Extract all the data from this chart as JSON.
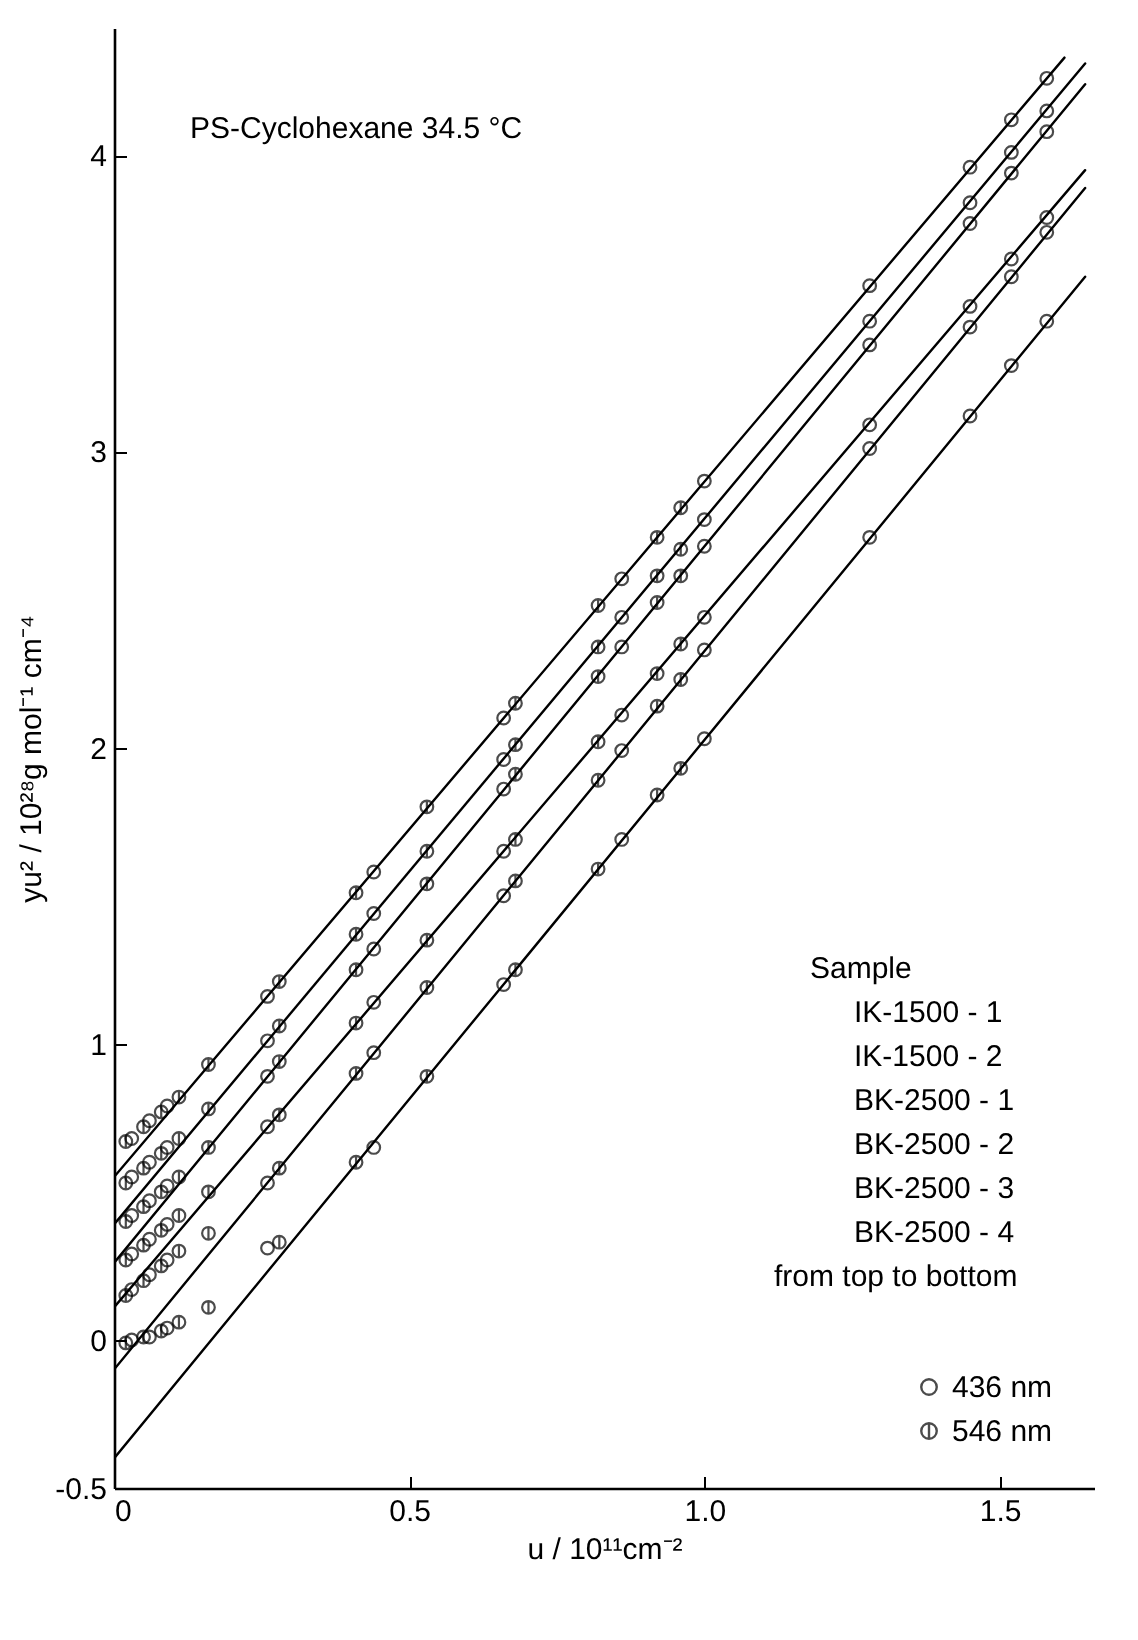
{
  "chart_data": {
    "type": "scatter",
    "xlabel": "u / 10¹¹cm⁻²",
    "ylabel": "yu² / 10²⁸g mol⁻¹ cm⁻⁴",
    "annotations": [
      "PS-Cyclohexane   34.5 °C",
      "Sample",
      "IK-1500 - 1",
      "IK-1500 - 2",
      "BK-2500 - 1",
      "BK-2500 - 2",
      "BK-2500 - 3",
      "BK-2500 - 4",
      "from top to bottom"
    ],
    "xlim": [
      0,
      1.66
    ],
    "ylim": [
      -0.5,
      4.43
    ],
    "xticks": [
      0,
      0.5,
      {
        "value": 1,
        "label": "1.0"
      },
      1.5
    ],
    "yticks": [
      -0.5,
      0,
      1,
      2,
      3,
      4
    ],
    "grid": false,
    "legend": "bottom right",
    "series": [
      {
        "name": "436 nm",
        "marker": "circle",
        "color": "#000000",
        "x": [
          0.03,
          0.06,
          0.09,
          0.26,
          0.44,
          0.66,
          0.86,
          1.0,
          1.28,
          1.45,
          1.52,
          1.58,
          0.03,
          0.06,
          0.09,
          0.26,
          0.44,
          0.66,
          0.86,
          1.0,
          1.28,
          1.45,
          1.52,
          1.58,
          0.03,
          0.06,
          0.09,
          0.26,
          0.44,
          0.66,
          0.86,
          1.0,
          1.28,
          1.45,
          1.52,
          1.58,
          0.03,
          0.06,
          0.09,
          0.26,
          0.44,
          0.66,
          0.86,
          1.0,
          1.28,
          1.45,
          1.52,
          1.58,
          0.03,
          0.06,
          0.09,
          0.26,
          0.44,
          0.66,
          0.86,
          1.0,
          1.28,
          1.45,
          1.52,
          1.58,
          0.03,
          0.06,
          0.09,
          0.26,
          0.44,
          0.66,
          0.86,
          1.0,
          1.28,
          1.45,
          1.52,
          1.58
        ],
        "values": [
          0.68,
          0.74,
          0.79,
          1.16,
          1.58,
          2.1,
          2.57,
          2.9,
          3.56,
          3.96,
          4.12,
          4.26,
          0.55,
          0.6,
          0.65,
          1.01,
          1.44,
          1.96,
          2.44,
          2.77,
          3.44,
          3.84,
          4.01,
          4.15,
          0.42,
          0.47,
          0.52,
          0.89,
          1.32,
          1.86,
          2.34,
          2.68,
          3.36,
          3.77,
          3.94,
          4.08,
          0.29,
          0.34,
          0.39,
          0.72,
          1.14,
          1.65,
          2.11,
          2.44,
          3.09,
          3.49,
          3.65,
          3.79,
          0.17,
          0.22,
          0.27,
          0.53,
          0.97,
          1.5,
          1.99,
          2.33,
          3.01,
          3.42,
          3.59,
          3.74,
          0.0,
          0.01,
          0.04,
          0.31,
          0.65,
          1.2,
          1.69,
          2.03,
          2.71,
          3.12,
          3.29,
          3.44
        ]
      },
      {
        "name": "546 nm",
        "marker": "cross",
        "color": "#000000",
        "x": [
          0.02,
          0.05,
          0.08,
          0.11,
          0.16,
          0.28,
          0.41,
          0.53,
          0.68,
          0.82,
          0.92,
          0.96,
          0.02,
          0.05,
          0.08,
          0.11,
          0.16,
          0.28,
          0.41,
          0.53,
          0.68,
          0.82,
          0.92,
          0.96,
          0.02,
          0.05,
          0.08,
          0.11,
          0.16,
          0.28,
          0.41,
          0.53,
          0.68,
          0.82,
          0.92,
          0.96,
          0.02,
          0.05,
          0.08,
          0.11,
          0.16,
          0.28,
          0.41,
          0.53,
          0.68,
          0.82,
          0.92,
          0.96,
          0.02,
          0.05,
          0.08,
          0.11,
          0.16,
          0.28,
          0.41,
          0.53,
          0.68,
          0.82,
          0.92,
          0.96,
          0.02,
          0.05,
          0.08,
          0.11,
          0.16,
          0.28,
          0.41,
          0.53,
          0.68,
          0.82,
          0.92,
          0.96
        ],
        "values": [
          0.67,
          0.72,
          0.77,
          0.82,
          0.93,
          1.21,
          1.51,
          1.8,
          2.15,
          2.48,
          2.71,
          2.81,
          0.53,
          0.58,
          0.63,
          0.68,
          0.78,
          1.06,
          1.37,
          1.65,
          2.01,
          2.34,
          2.58,
          2.67,
          0.4,
          0.45,
          0.5,
          0.55,
          0.65,
          0.94,
          1.25,
          1.54,
          1.91,
          2.24,
          2.49,
          2.58,
          0.27,
          0.32,
          0.37,
          0.42,
          0.5,
          0.76,
          1.07,
          1.35,
          1.69,
          2.02,
          2.25,
          2.35,
          0.15,
          0.2,
          0.25,
          0.3,
          0.36,
          0.58,
          0.9,
          1.19,
          1.55,
          1.89,
          2.14,
          2.23,
          -0.01,
          0.01,
          0.03,
          0.06,
          0.11,
          0.33,
          0.6,
          0.89,
          1.25,
          1.59,
          1.84,
          1.93
        ]
      },
      {
        "type": "line",
        "color": "#000000",
        "x": [
          0,
          1.61
        ],
        "values": [
          0.55,
          4.33
        ]
      },
      {
        "type": "line",
        "color": "#000000",
        "x": [
          0,
          1.645
        ],
        "values": [
          0.39,
          4.31
        ]
      },
      {
        "type": "line",
        "color": "#000000",
        "x": [
          0,
          1.645
        ],
        "values": [
          0.26,
          4.24
        ]
      },
      {
        "type": "line",
        "color": "#000000",
        "x": [
          0,
          1.645
        ],
        "values": [
          0.11,
          3.95
        ]
      },
      {
        "type": "line",
        "color": "#000000",
        "x": [
          0,
          1.645
        ],
        "values": [
          -0.1,
          3.89
        ]
      },
      {
        "type": "line",
        "color": "#000000",
        "x": [
          0,
          1.645
        ],
        "values": [
          -0.4,
          3.59
        ]
      }
    ]
  }
}
